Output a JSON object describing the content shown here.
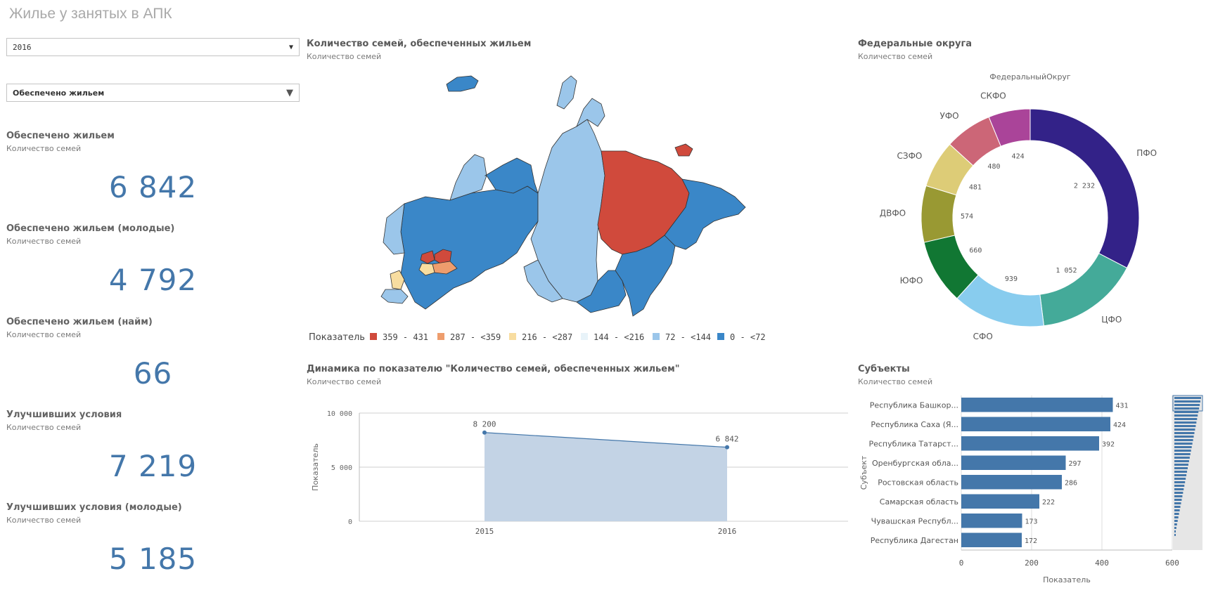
{
  "app": {
    "title": "Жилье у занятых в АПК"
  },
  "filters": {
    "year": {
      "value": "2016"
    },
    "indicator": {
      "value": "Обеспечено жильем"
    }
  },
  "kpis": [
    {
      "title": "Обеспечено жильем",
      "subtitle": "Количество семей",
      "value": "6 842"
    },
    {
      "title": "Обеспечено жильем (молодые)",
      "subtitle": "Количество семей",
      "value": "4 792"
    },
    {
      "title": "Обеспечено жильем (найм)",
      "subtitle": "Количество семей",
      "value": "66"
    },
    {
      "title": "Улучшивших условия",
      "subtitle": "Количество семей",
      "value": "7 219"
    },
    {
      "title": "Улучшивших условия (молодые)",
      "subtitle": "Количество семей",
      "value": "5 185"
    }
  ],
  "map": {
    "title": "Количество семей, обеспеченных жильем",
    "subtitle": "Количество семей",
    "legend_title": "Показатель",
    "legend": [
      {
        "label": "359 - 431",
        "color": "#d04a3c"
      },
      {
        "label": "287 - <359",
        "color": "#ee9d6d"
      },
      {
        "label": "216 - <287",
        "color": "#f8dda0"
      },
      {
        "label": "144 - <216",
        "color": "#e8f3f9"
      },
      {
        "label": "72 - <144",
        "color": "#9bc6ea"
      },
      {
        "label": "0 - <72",
        "color": "#3a87c8"
      }
    ]
  },
  "donut": {
    "title": "Федеральные округа",
    "subtitle": "Количество семей",
    "dimension_label": "ФедеральныйОкруг"
  },
  "line": {
    "title": "Динамика по показателю \"Количество семей, обеспеченных жильем\"",
    "subtitle": "Количество семей",
    "ylabel": "Показатель"
  },
  "bars": {
    "title": "Субъекты",
    "subtitle": "Количество семей",
    "ylabel": "Субъект",
    "xlabel": "Показатель"
  },
  "chart_data": [
    {
      "type": "pie",
      "title": "Федеральные округа",
      "categories": [
        "ПФО",
        "ЦФО",
        "СФО",
        "ЮФО",
        "ДВФО",
        "СЗФО",
        "УФО",
        "СКФО"
      ],
      "values": [
        2232,
        1052,
        939,
        660,
        574,
        481,
        480,
        424
      ],
      "value_labels": [
        "2 232",
        "1 052",
        "939",
        "660",
        "574",
        "481",
        "480",
        "424"
      ],
      "colors": [
        "#332288",
        "#44aa99",
        "#88ccee",
        "#117733",
        "#999933",
        "#ddcc77",
        "#cc6677",
        "#aa4499"
      ]
    },
    {
      "type": "area",
      "title": "Динамика по показателю \"Количество семей, обеспеченных жильем\"",
      "x": [
        "2015",
        "2016"
      ],
      "values": [
        8200,
        6842
      ],
      "value_labels": [
        "8 200",
        "6 842"
      ],
      "ylim": [
        0,
        10000
      ],
      "yticks": [
        0,
        5000,
        10000
      ],
      "ytick_labels": [
        "0",
        "5 000",
        "10 000"
      ],
      "ylabel": "Показатель",
      "grid": true
    },
    {
      "type": "bar",
      "title": "Субъекты",
      "orientation": "horizontal",
      "categories": [
        "Республика Башкор...",
        "Республика Саха (Я...",
        "Республика Татарст...",
        "Оренбургская обла...",
        "Ростовская область",
        "Самарская область",
        "Чувашская Республ...",
        "Республика Дагестан"
      ],
      "values": [
        431,
        424,
        392,
        297,
        286,
        222,
        173,
        172
      ],
      "xlim": [
        0,
        600
      ],
      "xticks": [
        0,
        200,
        400,
        600
      ],
      "xlabel": "Показатель",
      "ylabel": "Субъект",
      "color": "#4477aa",
      "grid": true
    }
  ]
}
